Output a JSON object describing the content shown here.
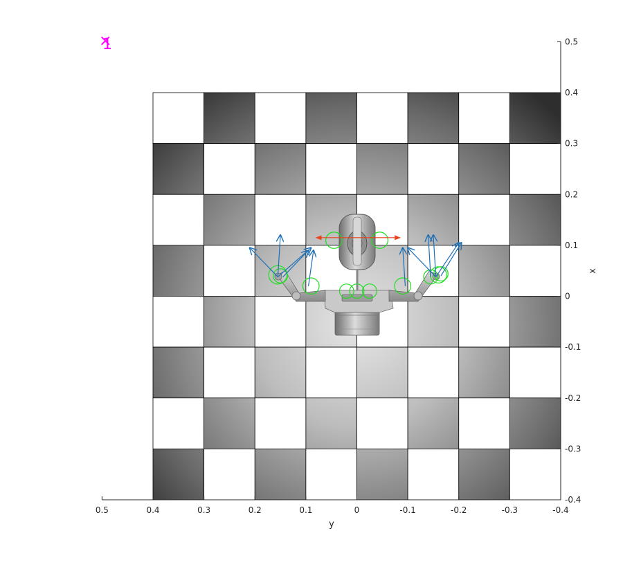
{
  "colors": {
    "marker": "#ff00ff",
    "arrow": "#1f6fb5",
    "force_arrow": "#e8431d",
    "contact_circle": "#22dd22",
    "grid_line": "#000000",
    "axis_color": "#262626",
    "robot_body": "#9a9a9a"
  },
  "marker": {
    "label": "1",
    "symbol": "×"
  },
  "board": {
    "rows": 8,
    "cols": 8,
    "x_range": [
      -0.4,
      0.4
    ],
    "y_range": [
      -0.4,
      0.4
    ]
  },
  "chart_data": {
    "type": "scatter",
    "xlabel": "y",
    "ylabel": "x",
    "x_axis": {
      "quantity": "y",
      "range": [
        0.5,
        -0.4
      ],
      "reversed": true,
      "ticks": [
        0.5,
        0.4,
        0.3,
        0.2,
        0.1,
        0,
        -0.1,
        -0.2,
        -0.3,
        -0.4
      ],
      "tick_labels": [
        "0.5",
        "0.4",
        "0.3",
        "0.2",
        "0.1",
        "0",
        "-0.1",
        "-0.2",
        "-0.3",
        "-0.4"
      ]
    },
    "y_axis": {
      "quantity": "x",
      "range": [
        -0.4,
        0.5
      ],
      "position": "right",
      "ticks": [
        0.5,
        0.4,
        0.3,
        0.2,
        0.1,
        0,
        -0.1,
        -0.2,
        -0.3,
        -0.4
      ],
      "tick_labels": [
        "0.5",
        "0.4",
        "0.3",
        "0.2",
        "0.1",
        "0",
        "-0.1",
        "-0.2",
        "-0.3",
        "-0.4"
      ]
    },
    "grid": false,
    "marker_point": {
      "y": 0.5,
      "x": 0.5,
      "label": "1"
    },
    "left_finger_arrows": [
      {
        "base_y": 0.155,
        "base_x": 0.038,
        "tip_y": 0.21,
        "tip_x": 0.095
      },
      {
        "base_y": 0.155,
        "base_x": 0.038,
        "tip_y": 0.15,
        "tip_x": 0.12
      },
      {
        "base_y": 0.155,
        "base_x": 0.038,
        "tip_y": 0.09,
        "tip_x": 0.095
      },
      {
        "base_y": 0.145,
        "base_x": 0.038,
        "tip_y": 0.095,
        "tip_x": 0.09
      },
      {
        "base_y": 0.095,
        "base_x": 0.02,
        "tip_y": 0.085,
        "tip_x": 0.09
      }
    ],
    "right_finger_arrows": [
      {
        "base_y": -0.155,
        "base_x": 0.038,
        "tip_y": -0.2,
        "tip_x": 0.105
      },
      {
        "base_y": -0.155,
        "base_x": 0.038,
        "tip_y": -0.15,
        "tip_x": 0.12
      },
      {
        "base_y": -0.155,
        "base_x": 0.038,
        "tip_y": -0.1,
        "tip_x": 0.095
      },
      {
        "base_y": -0.145,
        "base_x": 0.038,
        "tip_y": -0.14,
        "tip_x": 0.12
      },
      {
        "base_y": -0.095,
        "base_x": 0.02,
        "tip_y": -0.09,
        "tip_x": 0.095
      },
      {
        "base_y": -0.165,
        "base_x": 0.04,
        "tip_y": -0.205,
        "tip_x": 0.105
      }
    ],
    "force_arrow": {
      "y_from": 0.08,
      "y_to": -0.085,
      "x": 0.115
    },
    "contact_circles": [
      {
        "y": 0.155,
        "x": 0.042,
        "r": 0.018
      },
      {
        "y": 0.15,
        "x": 0.04,
        "r": 0.014
      },
      {
        "y": 0.09,
        "x": 0.02,
        "r": 0.016
      },
      {
        "y": 0.02,
        "x": 0.01,
        "r": 0.014
      },
      {
        "y": 0.0,
        "x": 0.01,
        "r": 0.014
      },
      {
        "y": -0.025,
        "x": 0.01,
        "r": 0.014
      },
      {
        "y": -0.09,
        "x": 0.02,
        "r": 0.016
      },
      {
        "y": -0.145,
        "x": 0.038,
        "r": 0.014
      },
      {
        "y": -0.16,
        "x": 0.042,
        "r": 0.016
      },
      {
        "y": -0.165,
        "x": 0.044,
        "r": 0.014
      },
      {
        "y": 0.045,
        "x": 0.11,
        "r": 0.016
      },
      {
        "y": -0.045,
        "x": 0.11,
        "r": 0.016
      }
    ]
  }
}
